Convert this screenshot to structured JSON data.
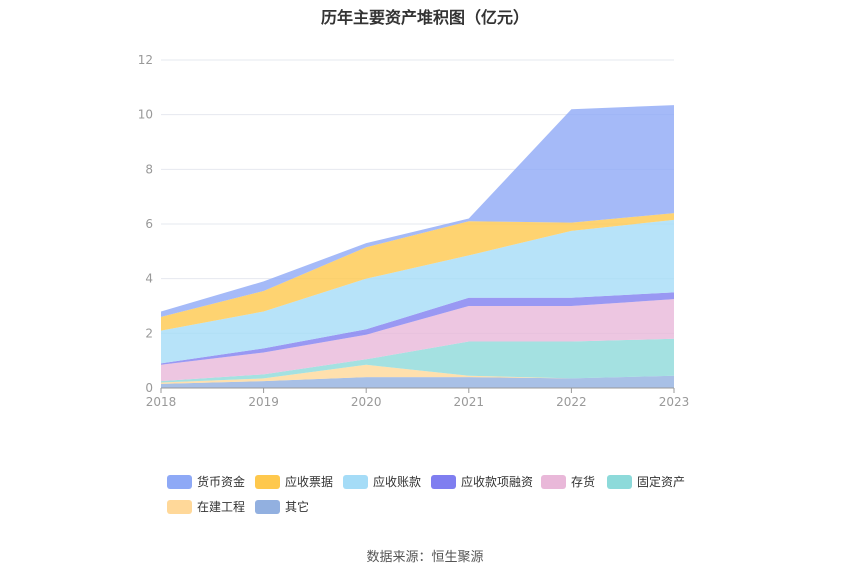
{
  "chart_data": {
    "type": "area",
    "stacked": true,
    "title": "历年主要资产堆积图（亿元）",
    "categories": [
      "2018",
      "2019",
      "2020",
      "2021",
      "2022",
      "2023"
    ],
    "ylim": [
      0,
      12
    ],
    "yticks": [
      "0",
      "2",
      "4",
      "6",
      "8",
      "10",
      "12"
    ],
    "grid": true,
    "legend_position": "bottom",
    "series": [
      {
        "name": "其它",
        "color": "#92b0e0",
        "values": [
          0.15,
          0.25,
          0.4,
          0.4,
          0.35,
          0.45
        ]
      },
      {
        "name": "在建工程",
        "color": "#ffd899",
        "values": [
          0.05,
          0.1,
          0.45,
          0.05,
          0.0,
          0.0
        ]
      },
      {
        "name": "固定资产",
        "color": "#8ddada",
        "values": [
          0.05,
          0.15,
          0.2,
          1.25,
          1.35,
          1.35
        ]
      },
      {
        "name": "存货",
        "color": "#e9b8d9",
        "values": [
          0.6,
          0.8,
          0.9,
          1.3,
          1.3,
          1.45
        ]
      },
      {
        "name": "应收款项融资",
        "color": "#7f7ef0",
        "values": [
          0.05,
          0.15,
          0.2,
          0.3,
          0.3,
          0.25
        ]
      },
      {
        "name": "应收账款",
        "color": "#a5dcf7",
        "values": [
          1.2,
          1.35,
          1.85,
          1.55,
          2.45,
          2.65
        ]
      },
      {
        "name": "应收票据",
        "color": "#fec84d",
        "values": [
          0.5,
          0.75,
          1.15,
          1.25,
          0.3,
          0.25
        ]
      },
      {
        "name": "货币资金",
        "color": "#8ea9f6",
        "values": [
          0.2,
          0.35,
          0.15,
          0.1,
          4.15,
          3.95
        ]
      }
    ],
    "legend_order": [
      "货币资金",
      "应收票据",
      "应收账款",
      "应收款项融资",
      "存货",
      "固定资产",
      "在建工程",
      "其它"
    ]
  },
  "source": "数据来源：恒生聚源"
}
